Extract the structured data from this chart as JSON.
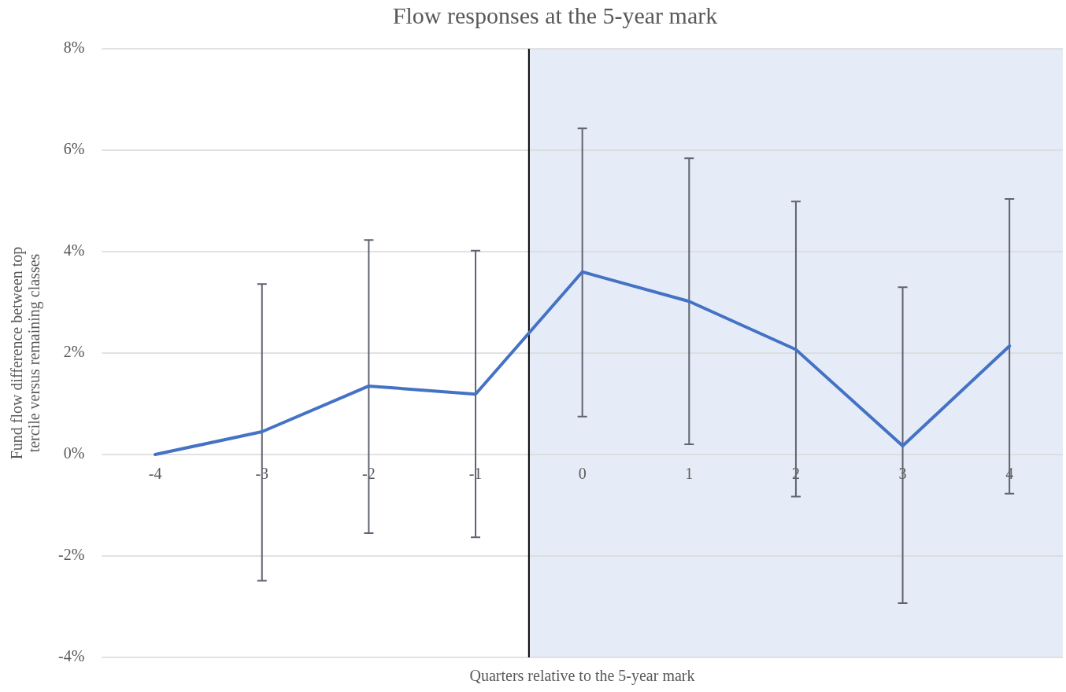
{
  "chart_data": {
    "type": "line",
    "title": "Flow responses at the 5-year mark",
    "xlabel": "Quarters relative to the 5-year mark",
    "ylabel": "Fund flow difference between top tercile versus remaining classes",
    "x": [
      -4,
      -3,
      -2,
      -1,
      0,
      1,
      2,
      3,
      4
    ],
    "series": [
      {
        "color": "#4472c4",
        "values": [
          0,
          0.45,
          1.35,
          1.19,
          3.6,
          3.02,
          2.07,
          0.17,
          2.14
        ],
        "errors": [
          null,
          [
            -2.49,
            3.36
          ],
          [
            -1.55,
            4.23
          ],
          [
            -1.63,
            4.02
          ],
          [
            0.75,
            6.43
          ],
          [
            0.2,
            5.84
          ],
          [
            -0.83,
            4.99
          ],
          [
            -2.93,
            3.3
          ],
          [
            -0.77,
            5.04
          ]
        ]
      }
    ],
    "xlim": [
      -4.5,
      4.5
    ],
    "xticks": [
      -4,
      -3,
      -2,
      -1,
      0,
      1,
      2,
      3,
      4
    ],
    "ylim": [
      -4,
      8
    ],
    "yticks": [
      {
        "value": -4,
        "label": "-4%"
      },
      {
        "value": -2,
        "label": "-2%"
      },
      {
        "value": 0,
        "label": "0%"
      },
      {
        "value": 2,
        "label": "2%"
      },
      {
        "value": 4,
        "label": "4%"
      },
      {
        "value": 6,
        "label": "6%"
      },
      {
        "value": 8,
        "label": "8%"
      }
    ],
    "ref_lines": [
      {
        "axis": "x",
        "value": -0.5,
        "color": "#000000"
      }
    ],
    "bands": [
      {
        "axis": "x",
        "from": -0.5,
        "to": 4.5,
        "color": "#e6ecf7"
      }
    ],
    "grid": "y",
    "legend": false,
    "marker": "none",
    "line_style": "solid"
  }
}
